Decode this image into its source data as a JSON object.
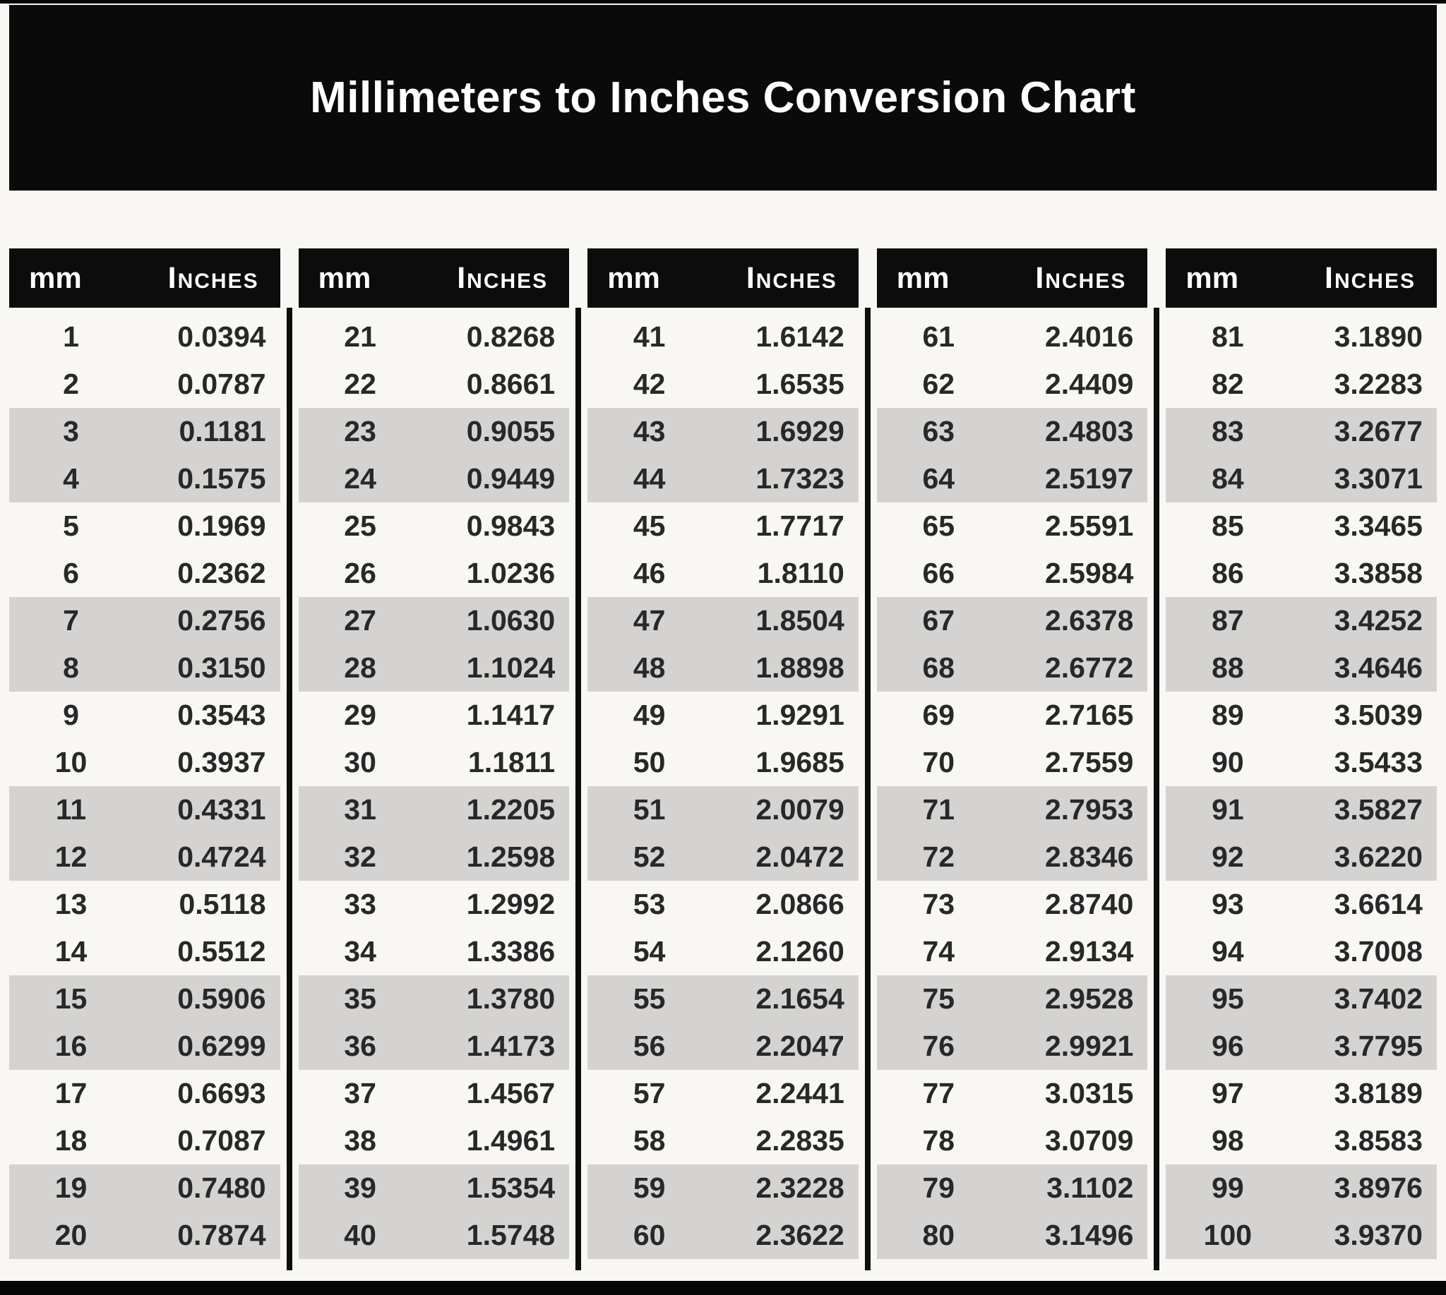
{
  "page": {
    "title": "Millimeters to Inches Conversion Chart"
  },
  "table": {
    "header": {
      "mm": "mm",
      "inches": "Inches"
    },
    "columns": [
      {
        "rows": [
          [
            "1",
            "0.0394"
          ],
          [
            "2",
            "0.0787"
          ],
          [
            "3",
            "0.1181"
          ],
          [
            "4",
            "0.1575"
          ],
          [
            "5",
            "0.1969"
          ],
          [
            "6",
            "0.2362"
          ],
          [
            "7",
            "0.2756"
          ],
          [
            "8",
            "0.3150"
          ],
          [
            "9",
            "0.3543"
          ],
          [
            "10",
            "0.3937"
          ],
          [
            "11",
            "0.4331"
          ],
          [
            "12",
            "0.4724"
          ],
          [
            "13",
            "0.5118"
          ],
          [
            "14",
            "0.5512"
          ],
          [
            "15",
            "0.5906"
          ],
          [
            "16",
            "0.6299"
          ],
          [
            "17",
            "0.6693"
          ],
          [
            "18",
            "0.7087"
          ],
          [
            "19",
            "0.7480"
          ],
          [
            "20",
            "0.7874"
          ]
        ]
      },
      {
        "rows": [
          [
            "21",
            "0.8268"
          ],
          [
            "22",
            "0.8661"
          ],
          [
            "23",
            "0.9055"
          ],
          [
            "24",
            "0.9449"
          ],
          [
            "25",
            "0.9843"
          ],
          [
            "26",
            "1.0236"
          ],
          [
            "27",
            "1.0630"
          ],
          [
            "28",
            "1.1024"
          ],
          [
            "29",
            "1.1417"
          ],
          [
            "30",
            "1.1811"
          ],
          [
            "31",
            "1.2205"
          ],
          [
            "32",
            "1.2598"
          ],
          [
            "33",
            "1.2992"
          ],
          [
            "34",
            "1.3386"
          ],
          [
            "35",
            "1.3780"
          ],
          [
            "36",
            "1.4173"
          ],
          [
            "37",
            "1.4567"
          ],
          [
            "38",
            "1.4961"
          ],
          [
            "39",
            "1.5354"
          ],
          [
            "40",
            "1.5748"
          ]
        ]
      },
      {
        "rows": [
          [
            "41",
            "1.6142"
          ],
          [
            "42",
            "1.6535"
          ],
          [
            "43",
            "1.6929"
          ],
          [
            "44",
            "1.7323"
          ],
          [
            "45",
            "1.7717"
          ],
          [
            "46",
            "1.8110"
          ],
          [
            "47",
            "1.8504"
          ],
          [
            "48",
            "1.8898"
          ],
          [
            "49",
            "1.9291"
          ],
          [
            "50",
            "1.9685"
          ],
          [
            "51",
            "2.0079"
          ],
          [
            "52",
            "2.0472"
          ],
          [
            "53",
            "2.0866"
          ],
          [
            "54",
            "2.1260"
          ],
          [
            "55",
            "2.1654"
          ],
          [
            "56",
            "2.2047"
          ],
          [
            "57",
            "2.2441"
          ],
          [
            "58",
            "2.2835"
          ],
          [
            "59",
            "2.3228"
          ],
          [
            "60",
            "2.3622"
          ]
        ]
      },
      {
        "rows": [
          [
            "61",
            "2.4016"
          ],
          [
            "62",
            "2.4409"
          ],
          [
            "63",
            "2.4803"
          ],
          [
            "64",
            "2.5197"
          ],
          [
            "65",
            "2.5591"
          ],
          [
            "66",
            "2.5984"
          ],
          [
            "67",
            "2.6378"
          ],
          [
            "68",
            "2.6772"
          ],
          [
            "69",
            "2.7165"
          ],
          [
            "70",
            "2.7559"
          ],
          [
            "71",
            "2.7953"
          ],
          [
            "72",
            "2.8346"
          ],
          [
            "73",
            "2.8740"
          ],
          [
            "74",
            "2.9134"
          ],
          [
            "75",
            "2.9528"
          ],
          [
            "76",
            "2.9921"
          ],
          [
            "77",
            "3.0315"
          ],
          [
            "78",
            "3.0709"
          ],
          [
            "79",
            "3.1102"
          ],
          [
            "80",
            "3.1496"
          ]
        ]
      },
      {
        "rows": [
          [
            "81",
            "3.1890"
          ],
          [
            "82",
            "3.2283"
          ],
          [
            "83",
            "3.2677"
          ],
          [
            "84",
            "3.3071"
          ],
          [
            "85",
            "3.3465"
          ],
          [
            "86",
            "3.3858"
          ],
          [
            "87",
            "3.4252"
          ],
          [
            "88",
            "3.4646"
          ],
          [
            "89",
            "3.5039"
          ],
          [
            "90",
            "3.5433"
          ],
          [
            "91",
            "3.5827"
          ],
          [
            "92",
            "3.6220"
          ],
          [
            "93",
            "3.6614"
          ],
          [
            "94",
            "3.7008"
          ],
          [
            "95",
            "3.7402"
          ],
          [
            "96",
            "3.7795"
          ],
          [
            "97",
            "3.8189"
          ],
          [
            "98",
            "3.8583"
          ],
          [
            "99",
            "3.8976"
          ],
          [
            "100",
            "3.9370"
          ]
        ]
      }
    ]
  }
}
